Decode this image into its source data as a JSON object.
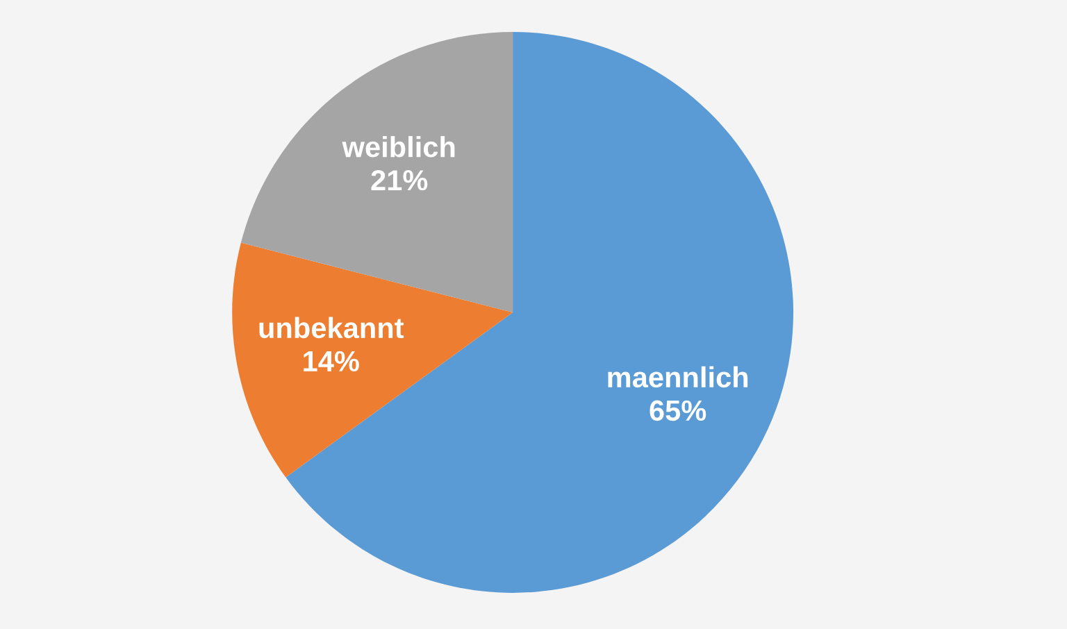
{
  "chart_data": {
    "type": "pie",
    "categories": [
      "maennlich",
      "unbekannt",
      "weiblich"
    ],
    "values": [
      65,
      14,
      21
    ],
    "colors": [
      "#5b9bd5",
      "#ed7d31",
      "#a5a5a5"
    ],
    "value_labels": [
      "65%",
      "14%",
      "21%"
    ]
  }
}
